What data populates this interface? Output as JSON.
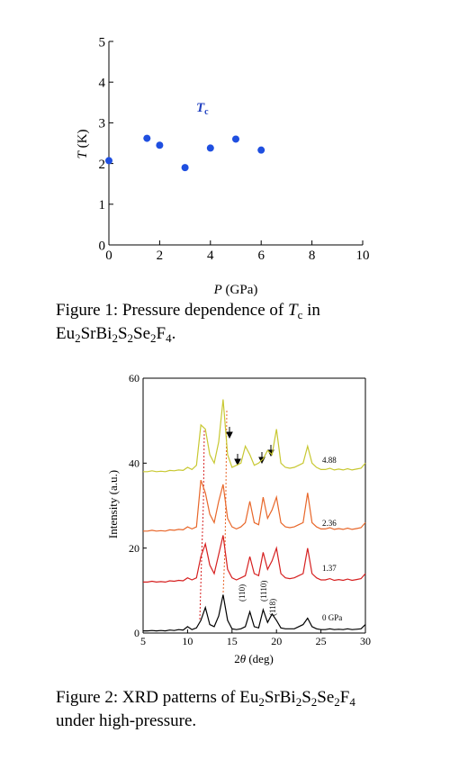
{
  "chart_data": [
    {
      "type": "scatter",
      "x_label": [
        "P",
        " (GPa)"
      ],
      "y_label": [
        "T",
        " (K)"
      ],
      "annotation": [
        "T",
        "c"
      ],
      "x": [
        0,
        1.5,
        2,
        3,
        4,
        5,
        6
      ],
      "values": [
        2.07,
        2.62,
        2.45,
        1.9,
        2.38,
        2.6,
        2.33
      ],
      "color": "#1f4fe0",
      "xlim": [
        0,
        10
      ],
      "xticks": [
        0,
        2,
        4,
        6,
        8,
        10
      ],
      "ylim": [
        0,
        5
      ],
      "yticks": [
        0,
        1,
        2,
        3,
        4,
        5
      ],
      "caption": [
        [
          "Figure 1: Pressure dependence of ",
          "T",
          "c",
          " in"
        ],
        [
          "Eu",
          "2",
          "SrBi",
          "2",
          "S",
          "2",
          "Se",
          "2",
          "F",
          "4",
          "."
        ]
      ]
    },
    {
      "type": "line",
      "x_label": [
        "2",
        "θ",
        " (deg)"
      ],
      "y_label": "Intensity (a.u.)",
      "annotations": [
        "(110)",
        "(1110)",
        "(118)"
      ],
      "x": [
        5,
        5.5,
        6,
        6.5,
        7,
        7.5,
        8,
        8.5,
        9,
        9.5,
        10,
        10.5,
        11,
        11.5,
        12,
        12.5,
        13,
        13.5,
        14,
        14.5,
        15,
        15.5,
        16,
        16.5,
        17,
        17.5,
        18,
        18.5,
        19,
        19.5,
        20,
        20.5,
        21,
        21.5,
        22,
        22.5,
        23,
        23.5,
        24,
        24.5,
        25,
        25.5,
        26,
        26.5,
        27,
        27.5,
        28,
        28.5,
        29,
        29.5,
        30
      ],
      "series": [
        {
          "name": "0 GPa",
          "color": "#000000",
          "values": [
            0.5,
            0.5,
            0.6,
            0.5,
            0.6,
            0.5,
            0.7,
            0.6,
            0.8,
            0.7,
            1.5,
            0.8,
            1.2,
            3,
            6,
            2,
            1.5,
            4,
            9,
            3,
            1,
            0.8,
            1,
            1.5,
            5,
            1.5,
            1.2,
            5.5,
            2.5,
            4.5,
            3,
            1.2,
            1,
            1,
            1,
            1.5,
            2,
            3.5,
            1.5,
            1,
            0.8,
            0.8,
            1,
            0.8,
            0.9,
            0.8,
            1,
            0.8,
            0.9,
            1,
            2
          ]
        },
        {
          "name": "1.37",
          "color": "#d62020",
          "values": [
            12,
            12,
            12.2,
            12,
            12.1,
            12,
            12.3,
            12.2,
            12.4,
            12.3,
            13,
            12.5,
            13,
            18,
            21,
            16,
            14,
            18.5,
            23,
            15,
            13,
            12.5,
            13,
            13.5,
            18,
            14,
            13.5,
            19,
            15,
            17,
            20,
            14,
            13,
            12.8,
            13,
            13.5,
            14,
            20,
            14,
            13,
            12.5,
            12.5,
            12.8,
            12.4,
            12.6,
            12.4,
            12.7,
            12.4,
            12.6,
            12.8,
            14
          ]
        },
        {
          "name": "2.36",
          "color": "#e8672a",
          "values": [
            24,
            24,
            24.2,
            24,
            24.1,
            24,
            24.3,
            24.2,
            24.4,
            24.3,
            25,
            24.5,
            25,
            36,
            33,
            28,
            26,
            31,
            35,
            27,
            25,
            24.5,
            25,
            26,
            31,
            26,
            25.5,
            32,
            27,
            29,
            32,
            26,
            25,
            24.8,
            25,
            25.5,
            26,
            33,
            26,
            25,
            24.5,
            24.5,
            24.8,
            24.4,
            24.6,
            24.4,
            24.7,
            24.4,
            24.6,
            24.8,
            26
          ]
        },
        {
          "name": "4.88",
          "color": "#c8c832",
          "values": [
            38,
            38,
            38.2,
            38,
            38.1,
            38,
            38.3,
            38.2,
            38.4,
            38.3,
            39,
            38.5,
            39.5,
            49,
            48,
            42,
            40,
            45,
            55,
            42,
            39,
            39.5,
            40,
            44,
            42,
            39.5,
            40,
            41,
            43,
            42,
            48,
            40,
            39,
            38.8,
            39,
            39.5,
            40,
            44,
            40,
            39,
            38.5,
            38.5,
            38.8,
            38.4,
            38.6,
            38.4,
            38.7,
            38.4,
            38.6,
            38.8,
            40
          ]
        }
      ],
      "xlim": [
        5,
        30
      ],
      "xticks": [
        5,
        10,
        15,
        20,
        25,
        30
      ],
      "ylim": [
        0,
        60
      ],
      "yticks": [
        0,
        20,
        40,
        60
      ],
      "caption": [
        [
          "Figure 2: XRD patterns of Eu",
          "2",
          "SrBi",
          "2",
          "S",
          "2",
          "Se",
          "2",
          "F",
          "4"
        ],
        [
          "under high-pressure."
        ]
      ]
    }
  ]
}
